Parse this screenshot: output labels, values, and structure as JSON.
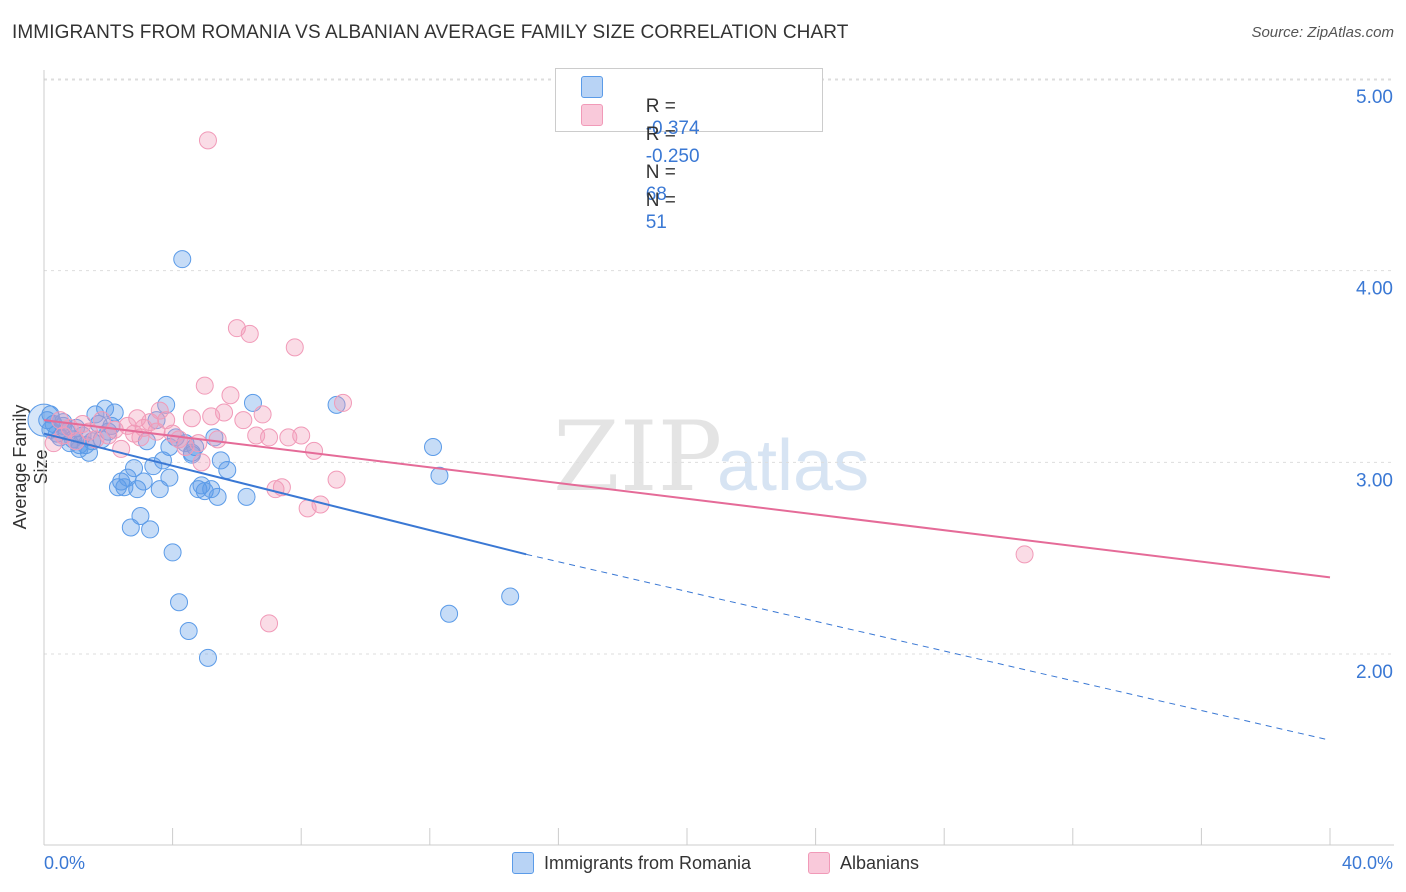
{
  "title": "IMMIGRANTS FROM ROMANIA VS ALBANIAN AVERAGE FAMILY SIZE CORRELATION CHART",
  "source": "Source: ZipAtlas.com",
  "watermark": {
    "zip": "ZIP",
    "atlas": "atlas"
  },
  "legend": {
    "rows": [
      {
        "r_label": "R =",
        "r_value": "-0.374",
        "n_label": "N =",
        "n_value": "68"
      },
      {
        "r_label": "R =",
        "r_value": "-0.250",
        "n_label": "N =",
        "n_value": "51"
      }
    ]
  },
  "chart_data": {
    "type": "scatter",
    "title": "IMMIGRANTS FROM ROMANIA VS ALBANIAN AVERAGE FAMILY SIZE CORRELATION CHART",
    "ylabel": "Average Family Size",
    "xlabel": "",
    "xlim": [
      0,
      40
    ],
    "ylim": [
      1.0,
      5.2
    ],
    "x_tick_labels": [
      "0.0%",
      "40.0%"
    ],
    "y_ticks": [
      5.0,
      4.0,
      3.0,
      2.0
    ],
    "y_tick_labels": [
      "5.00",
      "4.00",
      "3.00",
      "2.00"
    ],
    "grid": true,
    "legend_position": "top-center",
    "colors": {
      "romania": "#5b9be8",
      "albanians": "#f19ab8",
      "romania_line": "#3a78d4",
      "albanians_line": "#e56b98",
      "axis_text": "#3a78d4"
    },
    "series": [
      {
        "name": "Immigrants from Romania",
        "r": -0.374,
        "n": 68,
        "trend": {
          "x": [
            0,
            15,
            40
          ],
          "y": [
            3.15,
            2.52,
            1.55
          ],
          "dashed_from_x": 15
        },
        "points": [
          [
            0.1,
            3.22
          ],
          [
            0.2,
            3.17
          ],
          [
            0.3,
            3.2
          ],
          [
            0.4,
            3.15
          ],
          [
            0.5,
            3.13
          ],
          [
            0.6,
            3.19
          ],
          [
            0.7,
            3.16
          ],
          [
            0.8,
            3.1
          ],
          [
            0.9,
            3.12
          ],
          [
            1.0,
            3.18
          ],
          [
            1.1,
            3.07
          ],
          [
            1.2,
            3.14
          ],
          [
            1.3,
            3.09
          ],
          [
            1.4,
            3.05
          ],
          [
            1.5,
            3.11
          ],
          [
            1.6,
            3.25
          ],
          [
            1.7,
            3.2
          ],
          [
            1.8,
            3.12
          ],
          [
            1.9,
            3.28
          ],
          [
            2.0,
            3.16
          ],
          [
            2.1,
            3.19
          ],
          [
            2.2,
            3.26
          ],
          [
            2.4,
            2.9
          ],
          [
            2.5,
            2.87
          ],
          [
            2.6,
            2.92
          ],
          [
            2.7,
            2.66
          ],
          [
            2.8,
            2.97
          ],
          [
            2.9,
            2.86
          ],
          [
            3.0,
            2.72
          ],
          [
            3.1,
            2.9
          ],
          [
            3.2,
            3.11
          ],
          [
            3.3,
            2.65
          ],
          [
            3.4,
            2.98
          ],
          [
            3.5,
            3.22
          ],
          [
            3.6,
            2.86
          ],
          [
            3.7,
            3.01
          ],
          [
            3.8,
            3.3
          ],
          [
            3.9,
            2.92
          ],
          [
            4.0,
            2.53
          ],
          [
            4.1,
            3.13
          ],
          [
            4.2,
            2.27
          ],
          [
            4.3,
            4.06
          ],
          [
            4.4,
            3.1
          ],
          [
            4.5,
            2.12
          ],
          [
            4.6,
            3.05
          ],
          [
            4.7,
            3.08
          ],
          [
            4.8,
            2.86
          ],
          [
            4.9,
            2.88
          ],
          [
            5.0,
            2.85
          ],
          [
            5.1,
            1.98
          ],
          [
            5.2,
            2.86
          ],
          [
            5.3,
            3.13
          ],
          [
            5.4,
            2.82
          ],
          [
            5.5,
            3.01
          ],
          [
            5.7,
            2.96
          ],
          [
            6.3,
            2.82
          ],
          [
            6.5,
            3.31
          ],
          [
            9.1,
            3.3
          ],
          [
            12.1,
            3.08
          ],
          [
            12.3,
            2.93
          ],
          [
            12.6,
            2.21
          ],
          [
            14.5,
            2.3
          ],
          [
            0.2,
            3.25
          ],
          [
            0.6,
            3.21
          ],
          [
            1.1,
            3.09
          ],
          [
            2.3,
            2.87
          ],
          [
            3.9,
            3.08
          ],
          [
            4.6,
            3.04
          ]
        ]
      },
      {
        "name": "Albanians",
        "r": -0.25,
        "n": 51,
        "trend": {
          "x": [
            0,
            40
          ],
          "y": [
            3.22,
            2.4
          ]
        },
        "points": [
          [
            0.3,
            3.1
          ],
          [
            0.5,
            3.22
          ],
          [
            0.6,
            3.14
          ],
          [
            0.8,
            3.18
          ],
          [
            1.0,
            3.11
          ],
          [
            1.2,
            3.2
          ],
          [
            1.4,
            3.16
          ],
          [
            1.6,
            3.12
          ],
          [
            1.8,
            3.22
          ],
          [
            2.0,
            3.14
          ],
          [
            2.2,
            3.17
          ],
          [
            2.4,
            3.07
          ],
          [
            2.6,
            3.19
          ],
          [
            2.8,
            3.15
          ],
          [
            2.9,
            3.23
          ],
          [
            3.0,
            3.13
          ],
          [
            3.1,
            3.18
          ],
          [
            3.3,
            3.21
          ],
          [
            3.5,
            3.16
          ],
          [
            3.6,
            3.27
          ],
          [
            3.8,
            3.22
          ],
          [
            4.0,
            3.15
          ],
          [
            4.2,
            3.12
          ],
          [
            4.4,
            3.08
          ],
          [
            4.6,
            3.23
          ],
          [
            4.8,
            3.1
          ],
          [
            4.9,
            3.0
          ],
          [
            5.0,
            3.4
          ],
          [
            5.2,
            3.24
          ],
          [
            5.4,
            3.12
          ],
          [
            5.6,
            3.26
          ],
          [
            5.8,
            3.35
          ],
          [
            6.0,
            3.7
          ],
          [
            6.2,
            3.22
          ],
          [
            6.4,
            3.67
          ],
          [
            6.6,
            3.14
          ],
          [
            6.8,
            3.25
          ],
          [
            7.0,
            3.13
          ],
          [
            7.2,
            2.86
          ],
          [
            7.4,
            2.87
          ],
          [
            7.6,
            3.13
          ],
          [
            7.8,
            3.6
          ],
          [
            8.0,
            3.14
          ],
          [
            8.2,
            2.76
          ],
          [
            8.4,
            3.06
          ],
          [
            8.6,
            2.78
          ],
          [
            9.1,
            2.91
          ],
          [
            9.3,
            3.31
          ],
          [
            5.1,
            4.68
          ],
          [
            7.0,
            2.16
          ],
          [
            30.5,
            2.52
          ]
        ]
      }
    ]
  },
  "bottom_legend": {
    "items": [
      "Immigrants from Romania",
      "Albanians"
    ]
  }
}
